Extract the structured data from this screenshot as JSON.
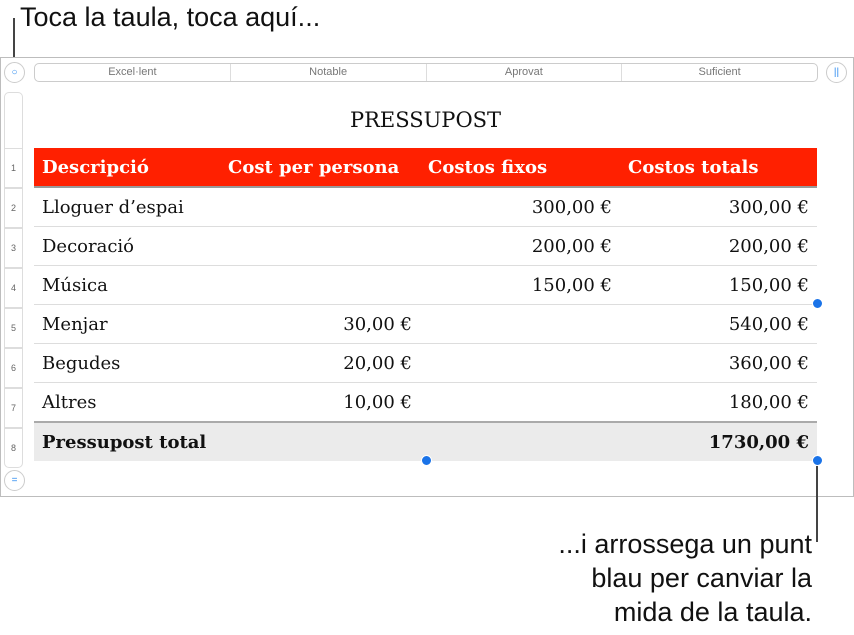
{
  "callouts": {
    "top": "Toca la taula, toca aquí...",
    "bottom_lines": [
      "...i arrossega un punt",
      "blau per canviar la",
      "mida de la taula."
    ]
  },
  "column_bar": [
    "Excel·lent",
    "Notable",
    "Aprovat",
    "Suficient"
  ],
  "title": "PRESSUPOST",
  "row_numbers": [
    "1",
    "2",
    "3",
    "4",
    "5",
    "6",
    "7",
    "8"
  ],
  "table": {
    "headers": [
      "Descripció",
      "Cost per persona",
      "Costos fixos",
      "Costos totals"
    ],
    "rows": [
      [
        "Lloguer d’espai",
        "",
        "300,00 €",
        "300,00 €"
      ],
      [
        "Decoració",
        "",
        "200,00 €",
        "200,00 €"
      ],
      [
        "Música",
        "",
        "150,00 €",
        "150,00 €"
      ],
      [
        "Menjar",
        "30,00 €",
        "",
        "540,00 €"
      ],
      [
        "Begudes",
        "20,00 €",
        "",
        "360,00 €"
      ],
      [
        "Altres",
        "10,00 €",
        "",
        "180,00 €"
      ]
    ],
    "total": [
      "Pressupost total",
      "",
      "",
      "1730,00 €"
    ]
  },
  "colors": {
    "header": "#ff2000",
    "handle": "#1a73e8"
  }
}
